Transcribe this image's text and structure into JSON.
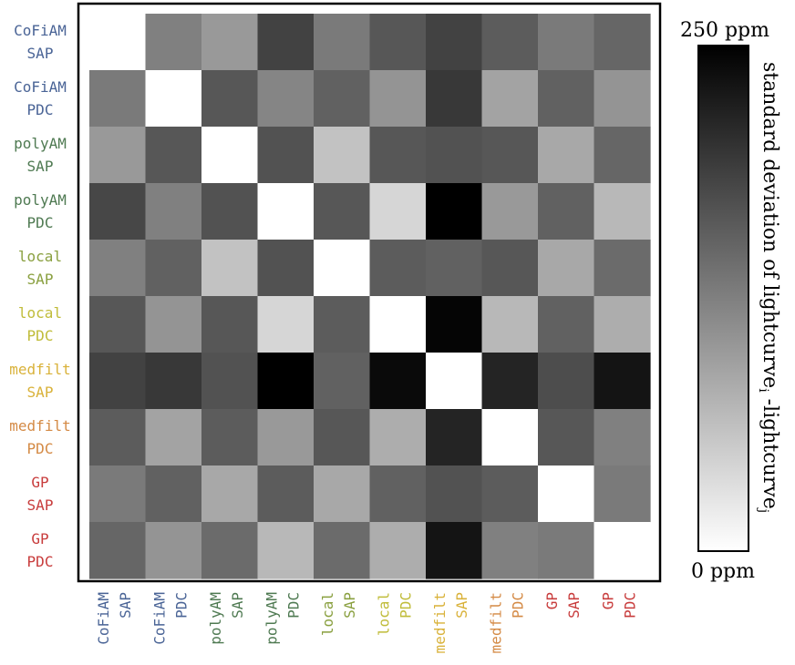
{
  "chart_data": {
    "type": "heatmap",
    "categories": [
      {
        "line1": "CoFiAM",
        "line2": "SAP",
        "color": "#4a6496"
      },
      {
        "line1": "CoFiAM",
        "line2": "PDC",
        "color": "#4a6496"
      },
      {
        "line1": "polyAM",
        "line2": "SAP",
        "color": "#4f7a52"
      },
      {
        "line1": "polyAM",
        "line2": "PDC",
        "color": "#4f7a52"
      },
      {
        "line1": "local",
        "line2": "SAP",
        "color": "#8aa040"
      },
      {
        "line1": "local",
        "line2": "PDC",
        "color": "#c0bc3a"
      },
      {
        "line1": "medfilt",
        "line2": "SAP",
        "color": "#d9b23a"
      },
      {
        "line1": "medfilt",
        "line2": "PDC",
        "color": "#d48a45"
      },
      {
        "line1": "GP",
        "line2": "SAP",
        "color": "#c83c3c"
      },
      {
        "line1": "GP",
        "line2": "PDC",
        "color": "#c83c3c"
      }
    ],
    "unit": "ppm",
    "zlim": [
      0,
      250
    ],
    "values": [
      [
        null,
        125,
        100,
        185,
        130,
        165,
        185,
        160,
        130,
        150
      ],
      [
        130,
        0,
        165,
        120,
        155,
        105,
        195,
        90,
        155,
        105
      ],
      [
        100,
        165,
        0,
        170,
        60,
        165,
        170,
        165,
        85,
        150
      ],
      [
        180,
        125,
        170,
        0,
        165,
        40,
        250,
        100,
        155,
        70
      ],
      [
        125,
        155,
        60,
        170,
        0,
        160,
        155,
        165,
        85,
        145
      ],
      [
        165,
        105,
        165,
        40,
        160,
        0,
        245,
        70,
        155,
        80
      ],
      [
        185,
        195,
        170,
        250,
        155,
        240,
        0,
        215,
        175,
        230
      ],
      [
        160,
        90,
        160,
        100,
        165,
        80,
        215,
        0,
        165,
        125
      ],
      [
        130,
        155,
        85,
        160,
        85,
        155,
        170,
        160,
        0,
        130
      ],
      [
        150,
        105,
        145,
        70,
        145,
        80,
        230,
        125,
        130,
        null
      ]
    ],
    "colorbar": {
      "top_label": "250 ppm",
      "bottom_label": "0 ppm",
      "title": "standard deviation of lightcurve",
      "title_sub_i": "i",
      "title_mid": " -lightcurve",
      "title_sub_j": "j"
    }
  }
}
